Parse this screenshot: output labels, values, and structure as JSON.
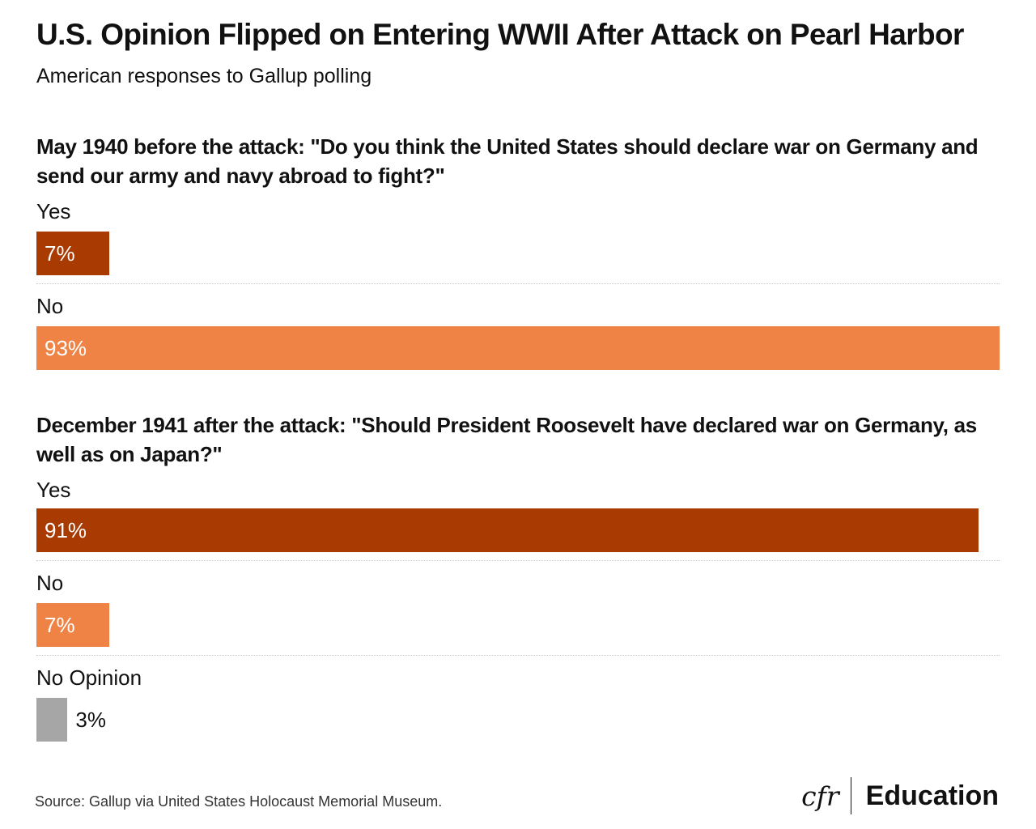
{
  "header": {
    "title": "U.S. Opinion Flipped on Entering WWII After Attack on Pearl Harbor",
    "subtitle": "American responses to Gallup polling"
  },
  "colors": {
    "yes": "#a93a02",
    "no": "#ef8346",
    "no_opinion": "#a6a6a6"
  },
  "chart_data": [
    {
      "type": "bar",
      "orientation": "horizontal",
      "title": "May 1940 before the attack: \"Do you think the United States should declare war on Germany and send our army and navy abroad to fight?\"",
      "categories": [
        "Yes",
        "No"
      ],
      "values": [
        7,
        93
      ],
      "value_labels": [
        "7%",
        "93%"
      ],
      "xlim": [
        0,
        93
      ],
      "grid": false,
      "legend": "none"
    },
    {
      "type": "bar",
      "orientation": "horizontal",
      "title": "December 1941 after the attack: \"Should President Roosevelt have declared war on Germany, as well as on Japan?\"",
      "categories": [
        "Yes",
        "No",
        "No Opinion"
      ],
      "values": [
        91,
        7,
        3
      ],
      "value_labels": [
        "91%",
        "7%",
        "3%"
      ],
      "xlim": [
        0,
        93
      ],
      "grid": false,
      "legend": "none"
    }
  ],
  "footer": {
    "source": "Source: Gallup via United States Holocaust Memorial Museum.",
    "logo_mark": "cfr",
    "logo_text": "Education"
  }
}
